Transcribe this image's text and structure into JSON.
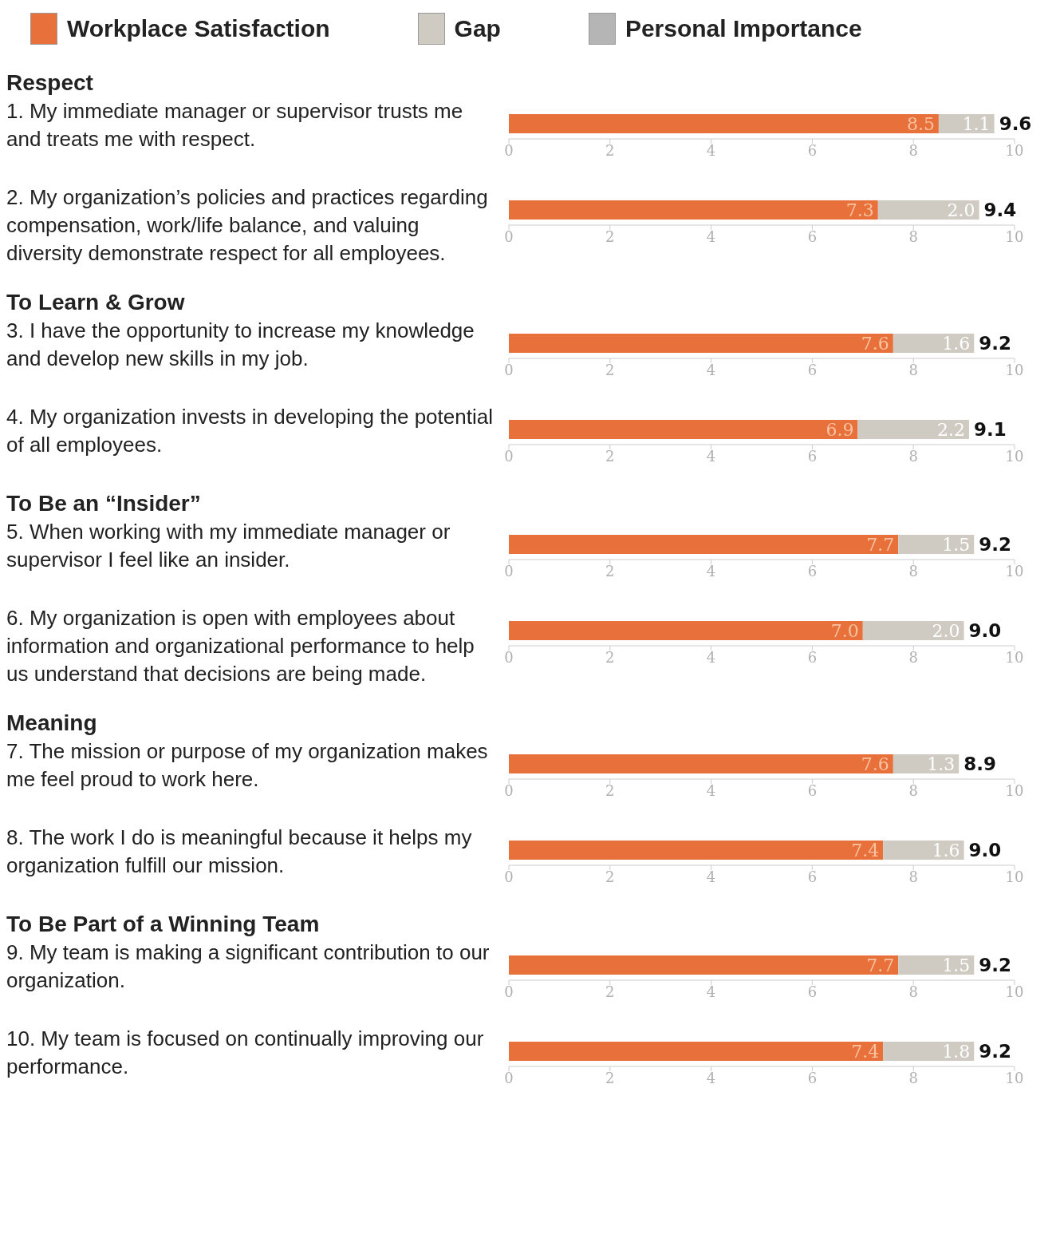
{
  "chart_data": [
    {
      "type": "bar",
      "orientation": "horizontal",
      "stacked": true,
      "title": "Respect",
      "categories": [
        "1. My immediate manager or supervisor trusts me and treats me with respect."
      ],
      "xlim": [
        0,
        10
      ],
      "xticks": [
        0,
        2,
        4,
        6,
        8,
        10
      ],
      "legend": "top",
      "totals": [
        "9.6"
      ],
      "series": [
        {
          "name": "Workplace Satisfaction",
          "color": "#e8703a",
          "values": [
            8.5
          ],
          "value_labels": [
            "8.5"
          ]
        },
        {
          "name": "Gap",
          "color": "#cfcbc3",
          "values": [
            1.1
          ],
          "value_labels": [
            "1.1"
          ]
        },
        {
          "name": "Personal Importance",
          "color": "#b5b5b5",
          "values": [
            null
          ]
        }
      ]
    },
    {
      "type": "bar",
      "orientation": "horizontal",
      "stacked": true,
      "categories": [
        "2.  My organization’s policies and practices regarding compensation, work/life balance, and valuing diversity demonstrate respect for all employees."
      ],
      "xlim": [
        0,
        10
      ],
      "xticks": [
        0,
        2,
        4,
        6,
        8,
        10
      ],
      "totals": [
        "9.4"
      ],
      "series": [
        {
          "color": "#e8703a",
          "values": [
            7.3
          ],
          "value_labels": [
            "7.3"
          ]
        },
        {
          "color": "#cfcbc3",
          "values": [
            2.0
          ],
          "value_labels": [
            "2.0"
          ]
        }
      ]
    },
    {
      "type": "bar",
      "orientation": "horizontal",
      "stacked": true,
      "title": "To Learn & Grow",
      "categories": [
        "3.  I have the opportunity to increase my knowledge and develop new skills in my job."
      ],
      "xlim": [
        0,
        10
      ],
      "xticks": [
        0,
        2,
        4,
        6,
        8,
        10
      ],
      "totals": [
        "9.2"
      ],
      "series": [
        {
          "color": "#e8703a",
          "values": [
            7.6
          ],
          "value_labels": [
            "7.6"
          ]
        },
        {
          "color": "#cfcbc3",
          "values": [
            1.6
          ],
          "value_labels": [
            "1.6"
          ]
        }
      ]
    },
    {
      "type": "bar",
      "orientation": "horizontal",
      "stacked": true,
      "categories": [
        "4.  My organization invests in developing the potential of all employees."
      ],
      "xlim": [
        0,
        10
      ],
      "xticks": [
        0,
        2,
        4,
        6,
        8,
        10
      ],
      "totals": [
        "9.1"
      ],
      "series": [
        {
          "color": "#e8703a",
          "values": [
            6.9
          ],
          "value_labels": [
            "6.9"
          ]
        },
        {
          "color": "#cfcbc3",
          "values": [
            2.2
          ],
          "value_labels": [
            "2.2"
          ]
        }
      ]
    },
    {
      "type": "bar",
      "orientation": "horizontal",
      "stacked": true,
      "title": "To Be an “Insider”",
      "categories": [
        "5. When working with my immediate manager or supervisor I feel like an insider."
      ],
      "xlim": [
        0,
        10
      ],
      "xticks": [
        0,
        2,
        4,
        6,
        8,
        10
      ],
      "totals": [
        "9.2"
      ],
      "series": [
        {
          "color": "#e8703a",
          "values": [
            7.7
          ],
          "value_labels": [
            "7.7"
          ]
        },
        {
          "color": "#cfcbc3",
          "values": [
            1.5
          ],
          "value_labels": [
            "1.5"
          ]
        }
      ]
    },
    {
      "type": "bar",
      "orientation": "horizontal",
      "stacked": true,
      "categories": [
        "6. My organization is open with employees about information and organizational performance to help us understand that decisions are being made."
      ],
      "xlim": [
        0,
        10
      ],
      "xticks": [
        0,
        2,
        4,
        6,
        8,
        10
      ],
      "totals": [
        "9.0"
      ],
      "series": [
        {
          "color": "#e8703a",
          "values": [
            7.0
          ],
          "value_labels": [
            "7.0"
          ]
        },
        {
          "color": "#cfcbc3",
          "values": [
            2.0
          ],
          "value_labels": [
            "2.0"
          ]
        }
      ]
    },
    {
      "type": "bar",
      "orientation": "horizontal",
      "stacked": true,
      "title": "Meaning",
      "categories": [
        "7. The mission or purpose of my organization makes me feel proud to work here."
      ],
      "xlim": [
        0,
        10
      ],
      "xticks": [
        0,
        2,
        4,
        6,
        8,
        10
      ],
      "totals": [
        "8.9"
      ],
      "series": [
        {
          "color": "#e8703a",
          "values": [
            7.6
          ],
          "value_labels": [
            "7.6"
          ]
        },
        {
          "color": "#cfcbc3",
          "values": [
            1.3
          ],
          "value_labels": [
            "1.3"
          ]
        }
      ]
    },
    {
      "type": "bar",
      "orientation": "horizontal",
      "stacked": true,
      "categories": [
        "8. The work I do is meaningful because it helps my organization fulfill our mission."
      ],
      "xlim": [
        0,
        10
      ],
      "xticks": [
        0,
        2,
        4,
        6,
        8,
        10
      ],
      "totals": [
        "9.0"
      ],
      "series": [
        {
          "color": "#e8703a",
          "values": [
            7.4
          ],
          "value_labels": [
            "7.4"
          ]
        },
        {
          "color": "#cfcbc3",
          "values": [
            1.6
          ],
          "value_labels": [
            "1.6"
          ]
        }
      ]
    },
    {
      "type": "bar",
      "orientation": "horizontal",
      "stacked": true,
      "title": "To Be Part of a Winning Team",
      "categories": [
        "9. My team is making a significant contribution to our organization."
      ],
      "xlim": [
        0,
        10
      ],
      "xticks": [
        0,
        2,
        4,
        6,
        8,
        10
      ],
      "totals": [
        "9.2"
      ],
      "series": [
        {
          "color": "#e8703a",
          "values": [
            7.7
          ],
          "value_labels": [
            "7.7"
          ]
        },
        {
          "color": "#cfcbc3",
          "values": [
            1.5
          ],
          "value_labels": [
            "1.5"
          ]
        }
      ]
    },
    {
      "type": "bar",
      "orientation": "horizontal",
      "stacked": true,
      "categories": [
        "10. My team is focused on continually improving our performance."
      ],
      "xlim": [
        0,
        10
      ],
      "xticks": [
        0,
        2,
        4,
        6,
        8,
        10
      ],
      "totals": [
        "9.2"
      ],
      "series": [
        {
          "color": "#e8703a",
          "values": [
            7.4
          ],
          "value_labels": [
            "7.4"
          ]
        },
        {
          "color": "#cfcbc3",
          "values": [
            1.8
          ],
          "value_labels": [
            "1.8"
          ]
        }
      ]
    }
  ]
}
